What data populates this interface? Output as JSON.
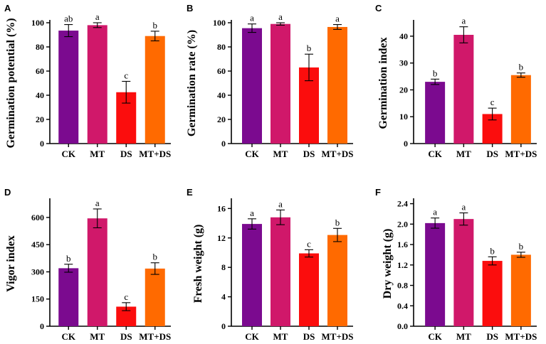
{
  "colors": {
    "CK": "#7b0a8f",
    "MT": "#d0186a",
    "DS": "#fb0d0d",
    "MT+DS": "#ff6a00"
  },
  "chart_data": [
    {
      "panel": "A",
      "type": "bar",
      "ylabel": "Germination potential (%)",
      "ylim": [
        0,
        100
      ],
      "yticks": [
        0,
        20,
        40,
        60,
        80,
        100
      ],
      "tick_labels": [
        "0",
        "20",
        "40",
        "60",
        "80",
        "100"
      ],
      "categories": [
        "CK",
        "MT",
        "DS",
        "MT+DS"
      ],
      "show_categories": true,
      "values": [
        93.5,
        98,
        42.5,
        89
      ],
      "errors": [
        5,
        2,
        9,
        4
      ],
      "letters": [
        "ab",
        "a",
        "c",
        "b"
      ]
    },
    {
      "panel": "B",
      "type": "bar",
      "ylabel": "Germination rate (%)",
      "ylim": [
        0,
        100
      ],
      "yticks": [
        0,
        20,
        40,
        60,
        80,
        100
      ],
      "tick_labels": [
        "0",
        "20",
        "40",
        "60",
        "80",
        "100"
      ],
      "categories": [
        "CK",
        "MT",
        "DS",
        "MT+DS"
      ],
      "show_categories": true,
      "values": [
        95.5,
        99,
        63,
        96.5
      ],
      "errors": [
        3.5,
        1,
        11,
        2
      ],
      "letters": [
        "a",
        "a",
        "b",
        "a"
      ]
    },
    {
      "panel": "C",
      "type": "bar",
      "ylabel": "Germination index",
      "ylim": [
        0,
        45
      ],
      "yticks": [
        0,
        10,
        20,
        30,
        40
      ],
      "tick_labels": [
        "0",
        "10",
        "20",
        "30",
        "40"
      ],
      "categories": [
        "CK",
        "MT",
        "DS",
        "MT+DS"
      ],
      "show_categories": true,
      "values": [
        23,
        40.5,
        11,
        25.5
      ],
      "errors": [
        1,
        3,
        2.2,
        0.8
      ],
      "letters": [
        "b",
        "a",
        "c",
        "b"
      ]
    },
    {
      "panel": "D",
      "type": "bar",
      "ylabel": "Vigor index",
      "ylim": [
        0,
        690
      ],
      "yticks": [
        0,
        150,
        300,
        450,
        600
      ],
      "tick_labels": [
        "0",
        "150",
        "300",
        "450",
        "600"
      ],
      "categories": [
        "CK",
        "MT",
        "DS",
        "MT+DS"
      ],
      "show_categories": true,
      "values": [
        320,
        595,
        108,
        318
      ],
      "errors": [
        22,
        52,
        22,
        32
      ],
      "letters": [
        "b",
        "a",
        "c",
        "b"
      ]
    },
    {
      "panel": "E",
      "type": "bar",
      "ylabel": "Fresh weight (g)",
      "ylim": [
        0,
        17
      ],
      "yticks": [
        0,
        4,
        8,
        12,
        16
      ],
      "tick_labels": [
        "0",
        "4",
        "8",
        "12",
        "16"
      ],
      "categories": [
        "CK",
        "MT",
        "DS",
        "MT+DS"
      ],
      "show_categories": true,
      "values": [
        13.9,
        14.8,
        9.9,
        12.4
      ],
      "errors": [
        0.7,
        1,
        0.5,
        0.9
      ],
      "letters": [
        "a",
        "a",
        "c",
        "b"
      ]
    },
    {
      "panel": "F",
      "type": "bar",
      "ylabel": "Dry weight (g)",
      "ylim": [
        0,
        2.45
      ],
      "yticks": [
        0,
        0.4,
        0.8,
        1.2,
        1.6,
        2.0,
        2.4
      ],
      "tick_labels": [
        "0.0",
        "0.4",
        "0.8",
        "1.2",
        "1.6",
        "2.0",
        "2.4"
      ],
      "categories": [
        "CK",
        "MT",
        "DS",
        "MT+DS"
      ],
      "show_categories": true,
      "values": [
        2.02,
        2.1,
        1.28,
        1.4
      ],
      "errors": [
        0.1,
        0.12,
        0.08,
        0.05
      ],
      "letters": [
        "a",
        "a",
        "b",
        "b"
      ]
    }
  ]
}
